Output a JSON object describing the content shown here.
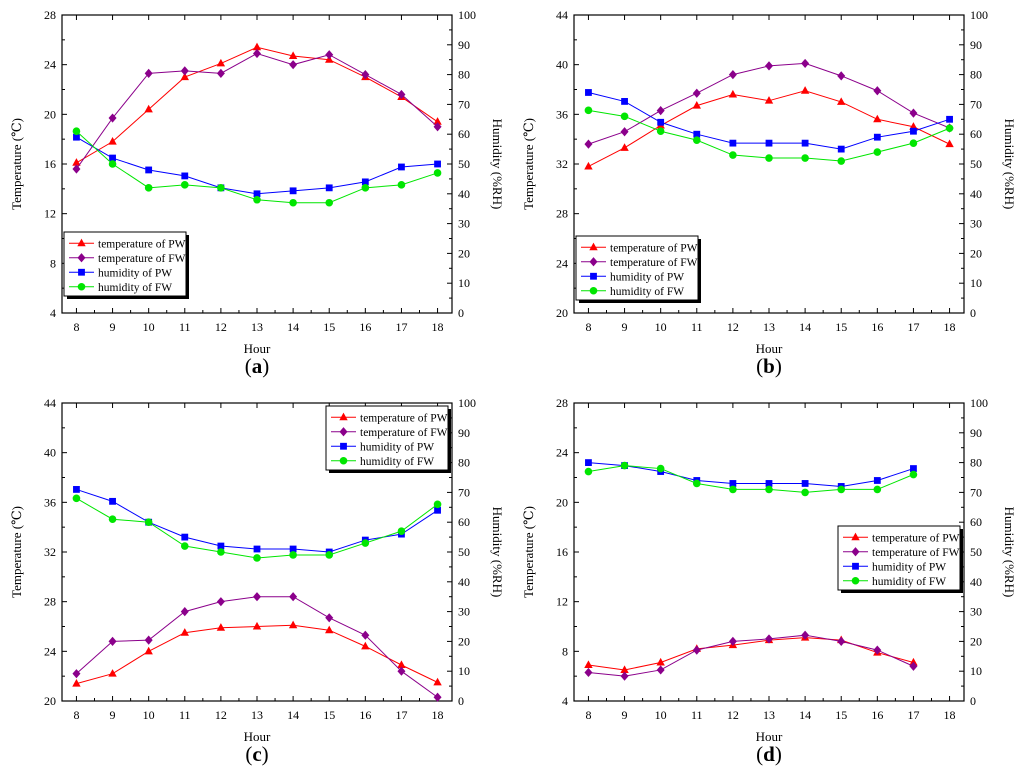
{
  "chart_data": [
    {
      "type": "line",
      "panel_label": "(a)",
      "panel_label_letter": "a",
      "xlabel": "Hour",
      "ylabel_left": "Temperature (℃)",
      "ylabel_right": "Humidity (%RH)",
      "x": [
        8,
        9,
        10,
        11,
        12,
        13,
        14,
        15,
        16,
        17,
        18
      ],
      "x_ticks": [
        8,
        9,
        10,
        11,
        12,
        13,
        14,
        15,
        16,
        17,
        18
      ],
      "xlim": [
        7.6,
        18.4
      ],
      "ylim_left": [
        4,
        28
      ],
      "yticks_left": [
        4,
        8,
        12,
        16,
        20,
        24,
        28
      ],
      "ylim_right": [
        0,
        100
      ],
      "yticks_right": [
        0,
        10,
        20,
        30,
        40,
        50,
        60,
        70,
        80,
        90,
        100
      ],
      "legend_position": "middle-left",
      "grid": false,
      "series": [
        {
          "name": "temperature of PW",
          "axis": "left",
          "color": "#ff0000",
          "marker": "triangle",
          "values": [
            16.1,
            17.8,
            20.4,
            23.0,
            24.1,
            25.4,
            24.7,
            24.4,
            23.0,
            21.4,
            19.4
          ]
        },
        {
          "name": "temperature of FW",
          "axis": "left",
          "color": "#8b008b",
          "marker": "diamond",
          "values": [
            15.6,
            19.7,
            23.3,
            23.5,
            23.3,
            24.9,
            24.0,
            24.8,
            23.2,
            21.6,
            19.0
          ]
        },
        {
          "name": "humidity of PW",
          "axis": "right",
          "color": "#0000ff",
          "marker": "square",
          "values": [
            59,
            52,
            48,
            46,
            42,
            40,
            41,
            42,
            44,
            49,
            50
          ]
        },
        {
          "name": "humidity of FW",
          "axis": "right",
          "color": "#00e600",
          "marker": "circle",
          "values": [
            61,
            50,
            42,
            43,
            42,
            38,
            37,
            37,
            42,
            43,
            47
          ]
        }
      ]
    },
    {
      "type": "line",
      "panel_label": "(b)",
      "panel_label_letter": "b",
      "xlabel": "Hour",
      "ylabel_left": "Temperature (℃)",
      "ylabel_right": "Humidity (%RH)",
      "x": [
        8,
        9,
        10,
        11,
        12,
        13,
        14,
        15,
        16,
        17,
        18
      ],
      "x_ticks": [
        8,
        9,
        10,
        11,
        12,
        13,
        14,
        15,
        16,
        17,
        18
      ],
      "xlim": [
        7.6,
        18.4
      ],
      "ylim_left": [
        20,
        44
      ],
      "yticks_left": [
        20,
        24,
        28,
        32,
        36,
        40,
        44
      ],
      "ylim_right": [
        0,
        100
      ],
      "yticks_right": [
        0,
        10,
        20,
        30,
        40,
        50,
        60,
        70,
        80,
        90,
        100
      ],
      "legend_position": "middle-left",
      "grid": false,
      "series": [
        {
          "name": "temperature of PW",
          "axis": "left",
          "color": "#ff0000",
          "marker": "triangle",
          "values": [
            31.8,
            33.3,
            35.1,
            36.7,
            37.6,
            37.1,
            37.9,
            37.0,
            35.6,
            35.0,
            33.6
          ]
        },
        {
          "name": "temperature of FW",
          "axis": "left",
          "color": "#8b008b",
          "marker": "diamond",
          "values": [
            33.6,
            34.6,
            36.3,
            37.7,
            39.2,
            39.9,
            40.1,
            39.1,
            37.9,
            36.1,
            34.9
          ]
        },
        {
          "name": "humidity of PW",
          "axis": "right",
          "color": "#0000ff",
          "marker": "square",
          "values": [
            74,
            71,
            64,
            60,
            57,
            57,
            57,
            55,
            59,
            61,
            65
          ]
        },
        {
          "name": "humidity of FW",
          "axis": "right",
          "color": "#00e600",
          "marker": "circle",
          "values": [
            68,
            66,
            61,
            58,
            53,
            52,
            52,
            51,
            54,
            57,
            62
          ]
        }
      ]
    },
    {
      "type": "line",
      "panel_label": "(c)",
      "panel_label_letter": "c",
      "xlabel": "Hour",
      "ylabel_left": "Temperature (℃)",
      "ylabel_right": "Humidity (%RH)",
      "x": [
        8,
        9,
        10,
        11,
        12,
        13,
        14,
        15,
        16,
        17,
        18
      ],
      "x_ticks": [
        8,
        9,
        10,
        11,
        12,
        13,
        14,
        15,
        16,
        17,
        18
      ],
      "xlim": [
        7.6,
        18.4
      ],
      "ylim_left": [
        20,
        44
      ],
      "yticks_left": [
        20,
        24,
        28,
        32,
        36,
        40,
        44
      ],
      "ylim_right": [
        0,
        100
      ],
      "yticks_right": [
        0,
        10,
        20,
        30,
        40,
        50,
        60,
        70,
        80,
        90,
        100
      ],
      "legend_position": "top-right",
      "grid": false,
      "series": [
        {
          "name": "temperature of PW",
          "axis": "left",
          "color": "#ff0000",
          "marker": "triangle",
          "values": [
            21.4,
            22.2,
            24.0,
            25.5,
            25.9,
            26.0,
            26.1,
            25.7,
            24.4,
            22.9,
            21.5
          ]
        },
        {
          "name": "temperature of FW",
          "axis": "left",
          "color": "#8b008b",
          "marker": "diamond",
          "values": [
            22.2,
            24.8,
            24.9,
            27.2,
            28.0,
            28.4,
            28.4,
            26.7,
            25.3,
            22.4,
            20.3
          ]
        },
        {
          "name": "humidity of PW",
          "axis": "right",
          "color": "#0000ff",
          "marker": "square",
          "values": [
            71,
            67,
            60,
            55,
            52,
            51,
            51,
            50,
            54,
            56,
            64
          ]
        },
        {
          "name": "humidity of FW",
          "axis": "right",
          "color": "#00e600",
          "marker": "circle",
          "values": [
            68,
            61,
            60,
            52,
            50,
            48,
            49,
            49,
            53,
            57,
            66
          ]
        }
      ]
    },
    {
      "type": "line",
      "panel_label": "(d)",
      "panel_label_letter": "d",
      "xlabel": "Hour",
      "ylabel_left": "Temperature (℃)",
      "ylabel_right": "Humidity (%RH)",
      "x": [
        8,
        9,
        10,
        11,
        12,
        13,
        14,
        15,
        16,
        17
      ],
      "x_ticks": [
        8,
        9,
        10,
        11,
        12,
        13,
        14,
        15,
        16,
        17,
        18
      ],
      "xlim": [
        7.6,
        18.4
      ],
      "ylim_left": [
        4,
        28
      ],
      "yticks_left": [
        4,
        8,
        12,
        16,
        20,
        24,
        28
      ],
      "ylim_right": [
        0,
        100
      ],
      "yticks_right": [
        0,
        10,
        20,
        30,
        40,
        50,
        60,
        70,
        80,
        90,
        100
      ],
      "legend_position": "middle-right",
      "grid": false,
      "series": [
        {
          "name": "temperature of PW",
          "axis": "left",
          "color": "#ff0000",
          "marker": "triangle",
          "values": [
            6.9,
            6.5,
            7.1,
            8.2,
            8.5,
            8.9,
            9.1,
            8.9,
            7.9,
            7.1
          ]
        },
        {
          "name": "temperature of FW",
          "axis": "left",
          "color": "#8b008b",
          "marker": "diamond",
          "values": [
            6.3,
            6.0,
            6.5,
            8.1,
            8.8,
            9.0,
            9.3,
            8.8,
            8.1,
            6.8
          ]
        },
        {
          "name": "humidity of PW",
          "axis": "right",
          "color": "#0000ff",
          "marker": "square",
          "values": [
            80,
            79,
            77,
            74,
            73,
            73,
            73,
            72,
            74,
            78
          ]
        },
        {
          "name": "humidity of FW",
          "axis": "right",
          "color": "#00e600",
          "marker": "circle",
          "values": [
            77,
            79,
            78,
            73,
            71,
            71,
            70,
            71,
            71,
            76
          ]
        }
      ]
    }
  ]
}
